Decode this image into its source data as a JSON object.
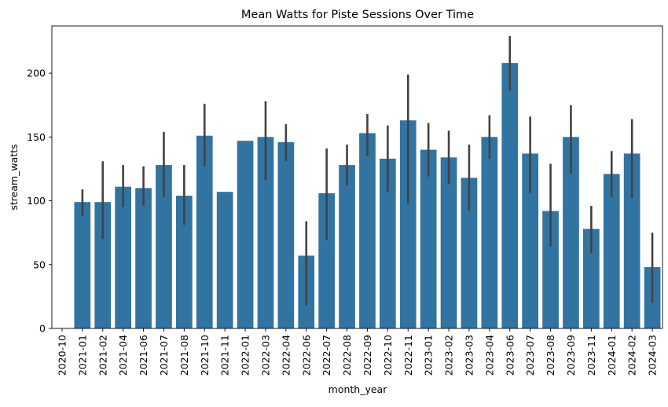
{
  "chart_data": {
    "type": "bar",
    "title": "Mean Watts for Piste Sessions Over Time",
    "xlabel": "month_year",
    "ylabel": "stream_watts",
    "ylim": [
      0,
      237
    ],
    "yticks": [
      0,
      50,
      100,
      150,
      200
    ],
    "grid": false,
    "legend": "none",
    "bar_color": "#3274a1",
    "errorbar_color": "#424242",
    "categories": [
      "2020-10",
      "2021-01",
      "2021-02",
      "2021-04",
      "2021-06",
      "2021-07",
      "2021-08",
      "2021-10",
      "2021-11",
      "2022-01",
      "2022-03",
      "2022-04",
      "2022-06",
      "2022-07",
      "2022-08",
      "2022-09",
      "2022-10",
      "2022-11",
      "2023-01",
      "2023-02",
      "2023-03",
      "2023-04",
      "2023-06",
      "2023-07",
      "2023-08",
      "2023-09",
      "2023-11",
      "2024-01",
      "2024-02",
      "2024-03"
    ],
    "values": [
      0,
      99,
      99,
      111,
      110,
      128,
      104,
      151,
      107,
      147,
      150,
      146,
      57,
      106,
      128,
      153,
      133,
      163,
      140,
      134,
      118,
      150,
      208,
      137,
      92,
      150,
      78,
      121,
      137,
      48
    ],
    "error_low": [
      null,
      88,
      70,
      95,
      96,
      103,
      81,
      127,
      null,
      null,
      116,
      131,
      18,
      69,
      112,
      135,
      107,
      98,
      119,
      113,
      92,
      133,
      186,
      106,
      64,
      121,
      59,
      103,
      102,
      20
    ],
    "error_high": [
      null,
      109,
      131,
      128,
      127,
      154,
      128,
      176,
      null,
      null,
      178,
      160,
      84,
      141,
      144,
      168,
      159,
      199,
      161,
      155,
      144,
      167,
      229,
      166,
      129,
      175,
      96,
      139,
      164,
      75
    ]
  }
}
